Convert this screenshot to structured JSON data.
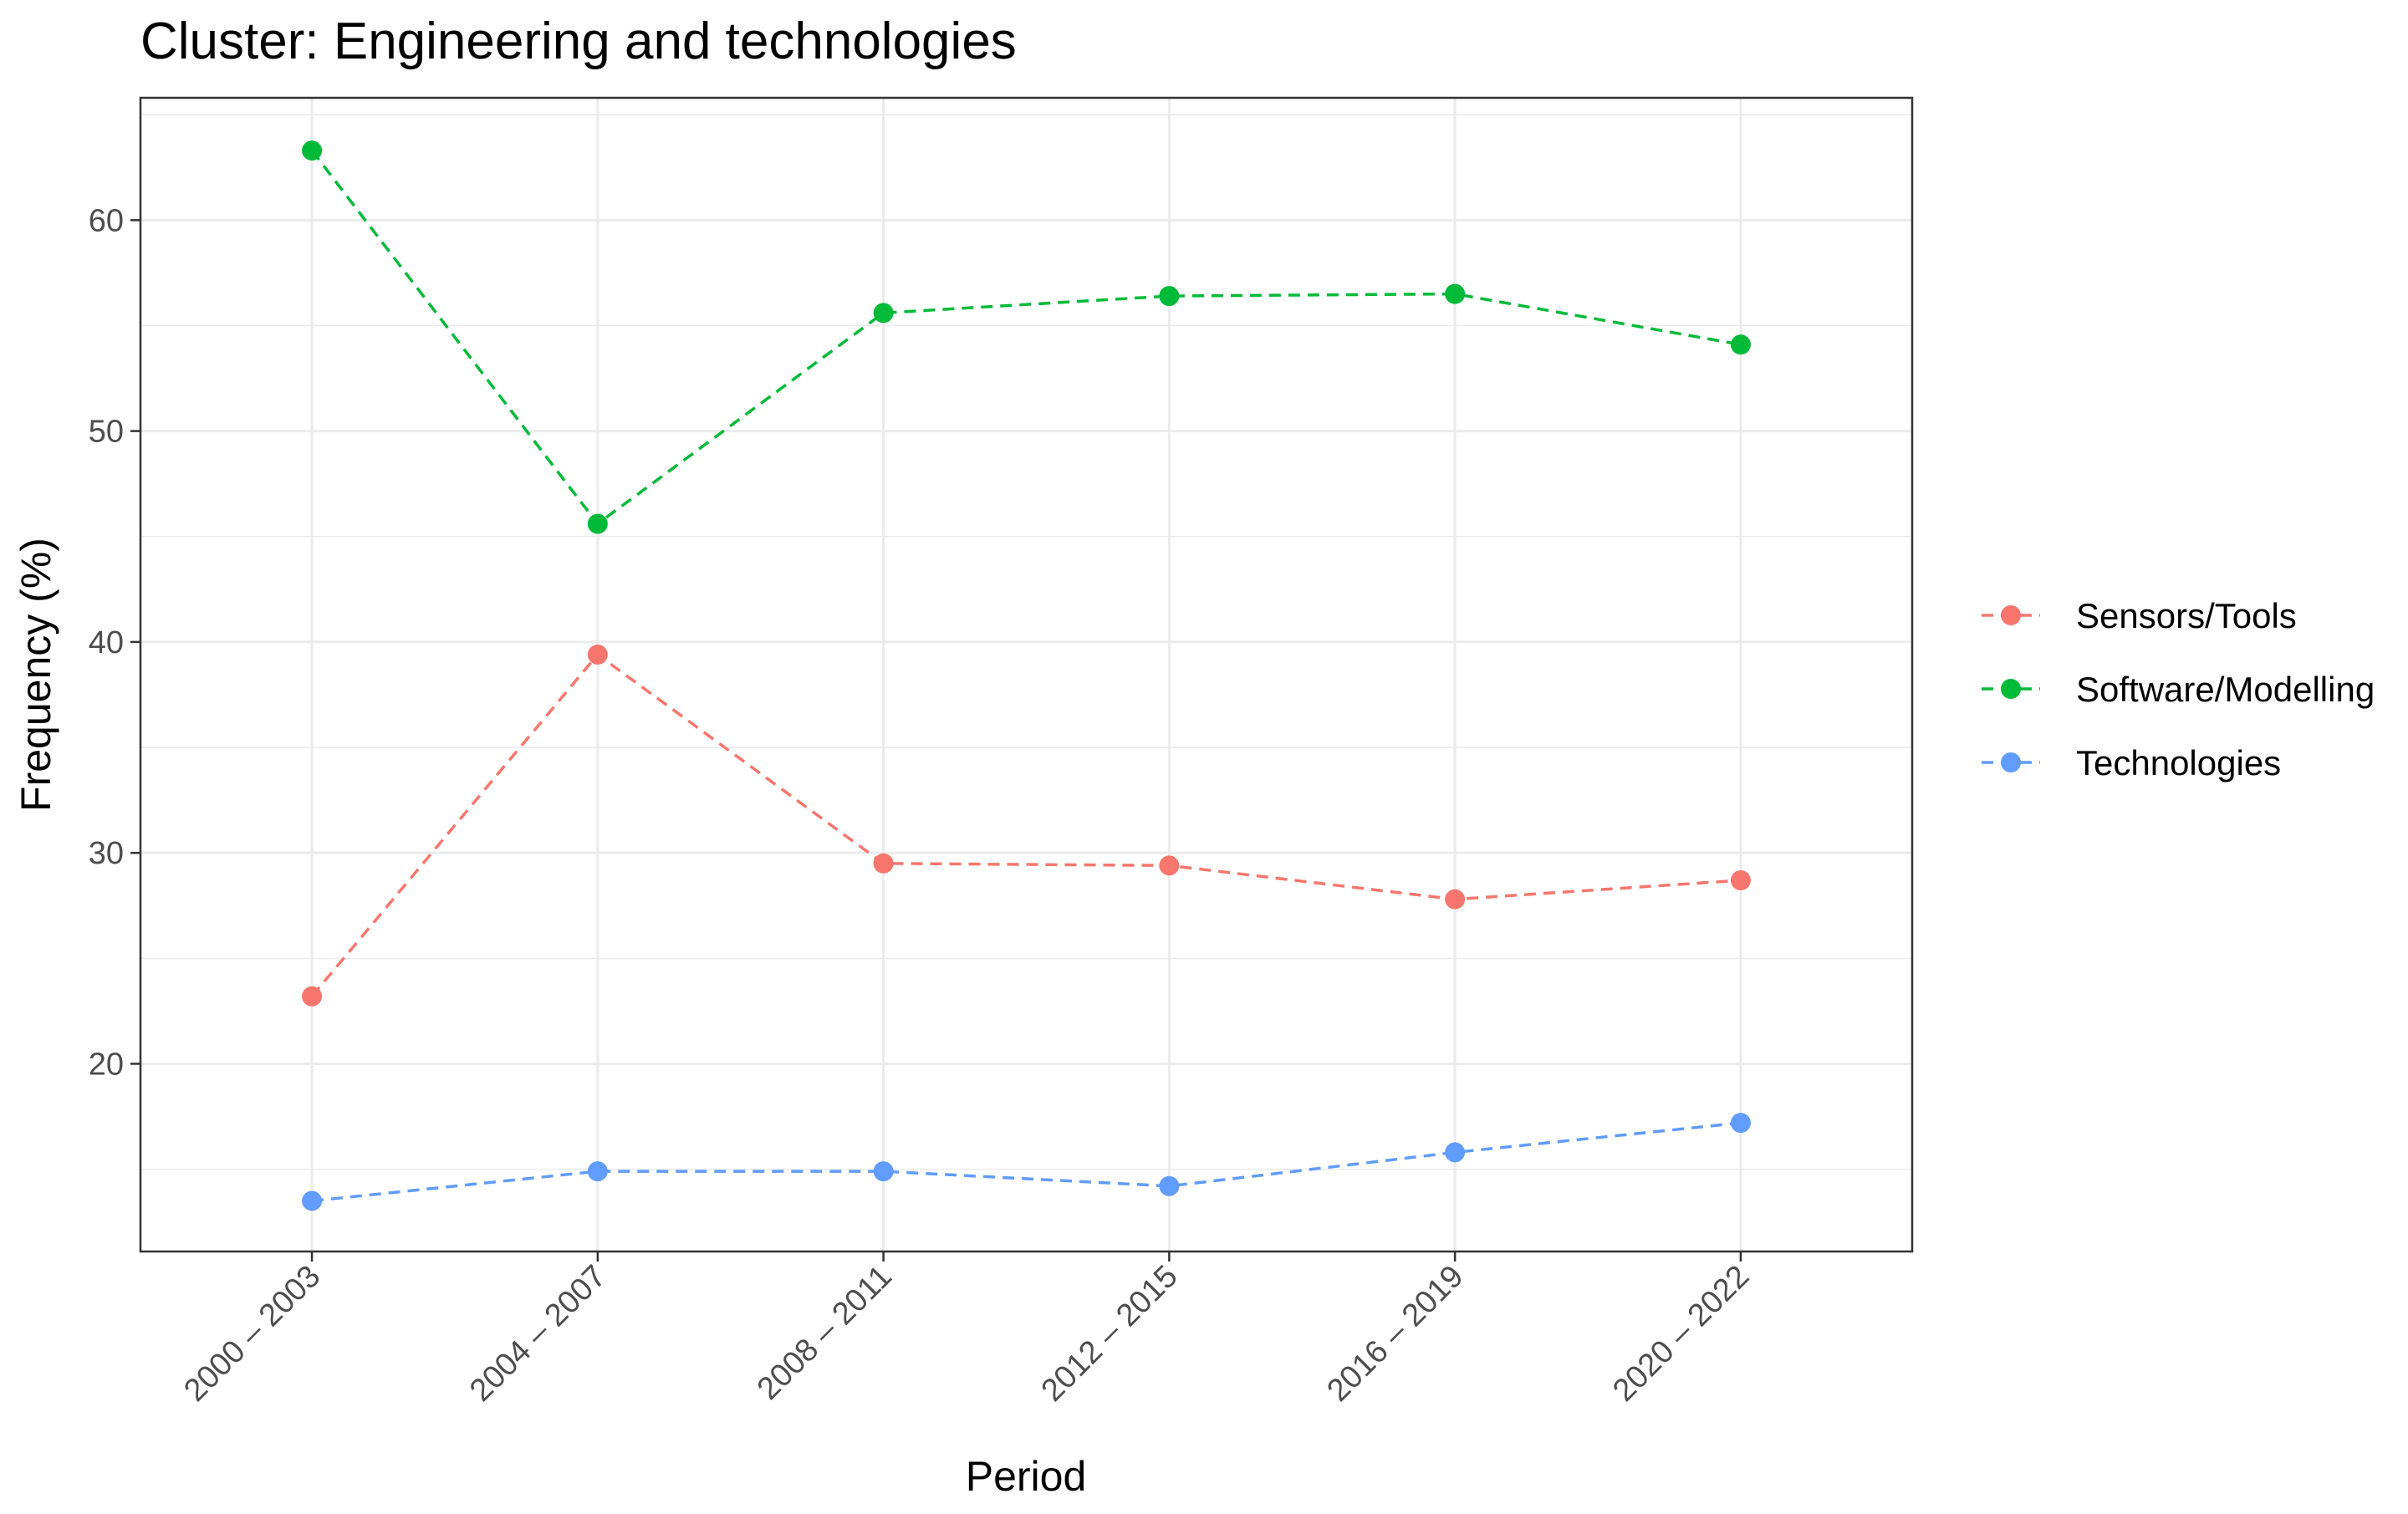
{
  "chart_data": {
    "type": "line",
    "title": "Cluster: Engineering and technologies",
    "xlabel": "Period",
    "ylabel": "Frequency (%)",
    "categories": [
      "2000 – 2003",
      "2004 – 2007",
      "2008 – 2011",
      "2012 – 2015",
      "2016 – 2019",
      "2020 – 2022"
    ],
    "yticks": [
      20,
      30,
      40,
      50,
      60
    ],
    "ylim": [
      11.1,
      65.8
    ],
    "grid": true,
    "legend_position": "right",
    "series": [
      {
        "name": "Sensors/Tools",
        "color": "#F8766D",
        "values": [
          23.2,
          39.4,
          29.5,
          29.4,
          27.8,
          28.7
        ]
      },
      {
        "name": "Software/Modelling",
        "color": "#00BA38",
        "values": [
          63.3,
          45.6,
          55.6,
          56.4,
          56.5,
          54.1
        ]
      },
      {
        "name": "Technologies",
        "color": "#619CFF",
        "values": [
          13.5,
          14.9,
          14.9,
          14.2,
          15.8,
          17.2
        ]
      }
    ]
  }
}
